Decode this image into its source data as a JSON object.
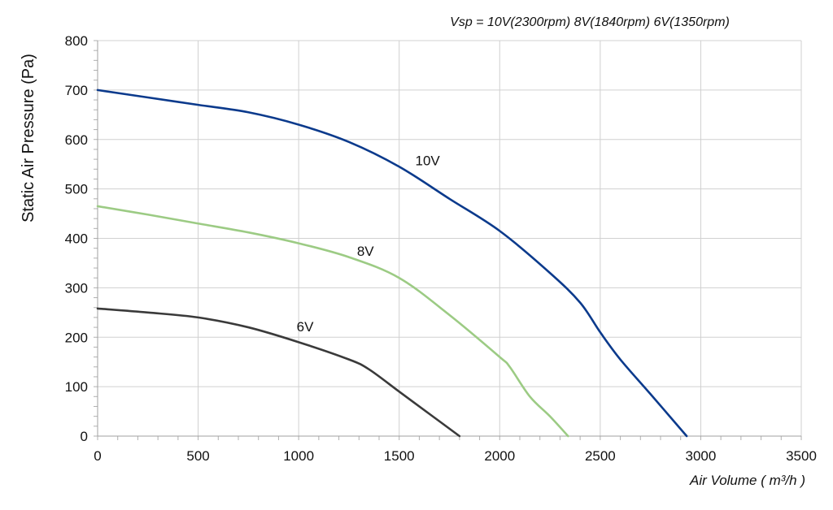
{
  "chart_data": {
    "type": "line",
    "subtitle": "Vsp = 10V(2300rpm)  8V(1840rpm)   6V(1350rpm)",
    "xlabel": "Air Volume ( m³/h )",
    "ylabel": "Static Air Pressure  (Pa)",
    "xlim": [
      0,
      3500
    ],
    "ylim": [
      0,
      800
    ],
    "x_ticks": [
      0,
      500,
      1000,
      1500,
      2000,
      2500,
      3000,
      3500
    ],
    "y_ticks": [
      0,
      100,
      200,
      300,
      400,
      500,
      600,
      700,
      800
    ],
    "grid": true,
    "series": [
      {
        "name": "10V",
        "color": "#0b3a8c",
        "label_at": [
          1580,
          548
        ],
        "points": [
          [
            0,
            700
          ],
          [
            250,
            685
          ],
          [
            500,
            670
          ],
          [
            750,
            655
          ],
          [
            1000,
            630
          ],
          [
            1250,
            595
          ],
          [
            1500,
            545
          ],
          [
            1750,
            480
          ],
          [
            2000,
            415
          ],
          [
            2250,
            330
          ],
          [
            2400,
            270
          ],
          [
            2500,
            210
          ],
          [
            2600,
            155
          ],
          [
            2750,
            85
          ],
          [
            2930,
            0
          ]
        ]
      },
      {
        "name": "8V",
        "color": "#9ccb84",
        "label_at": [
          1290,
          365
        ],
        "points": [
          [
            0,
            465
          ],
          [
            250,
            448
          ],
          [
            500,
            430
          ],
          [
            750,
            412
          ],
          [
            1000,
            390
          ],
          [
            1250,
            362
          ],
          [
            1500,
            320
          ],
          [
            1750,
            245
          ],
          [
            2000,
            160
          ],
          [
            2050,
            140
          ],
          [
            2150,
            80
          ],
          [
            2250,
            40
          ],
          [
            2340,
            0
          ]
        ]
      },
      {
        "name": "6V",
        "color": "#3a3a3a",
        "label_at": [
          990,
          212
        ],
        "points": [
          [
            0,
            258
          ],
          [
            250,
            250
          ],
          [
            500,
            240
          ],
          [
            750,
            220
          ],
          [
            1000,
            190
          ],
          [
            1250,
            155
          ],
          [
            1350,
            135
          ],
          [
            1500,
            90
          ],
          [
            1650,
            45
          ],
          [
            1800,
            0
          ]
        ]
      }
    ]
  }
}
